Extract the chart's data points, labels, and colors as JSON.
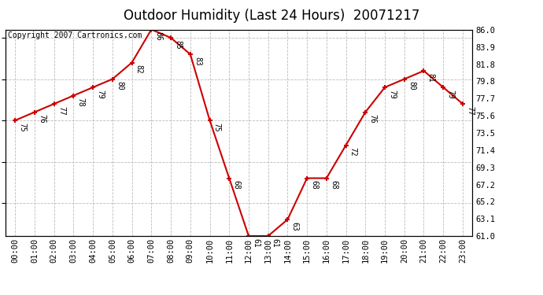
{
  "title": "Outdoor Humidity (Last 24 Hours)  20071217",
  "copyright": "Copyright 2007 Cartronics.com",
  "x_labels": [
    "00:00",
    "01:00",
    "02:00",
    "03:00",
    "04:00",
    "05:00",
    "06:00",
    "07:00",
    "08:00",
    "09:00",
    "10:00",
    "11:00",
    "12:00",
    "13:00",
    "14:00",
    "15:00",
    "16:00",
    "17:00",
    "18:00",
    "19:00",
    "20:00",
    "21:00",
    "22:00",
    "23:00"
  ],
  "x_values": [
    0,
    1,
    2,
    3,
    4,
    5,
    6,
    7,
    8,
    9,
    10,
    11,
    12,
    13,
    14,
    15,
    16,
    17,
    18,
    19,
    20,
    21,
    22,
    23
  ],
  "y_values": [
    75,
    76,
    77,
    78,
    79,
    80,
    82,
    86,
    85,
    83,
    75,
    68,
    61,
    61,
    63,
    68,
    68,
    72,
    76,
    79,
    80,
    81,
    79,
    77
  ],
  "y_labels_right": [
    "86.0",
    "83.9",
    "81.8",
    "79.8",
    "77.7",
    "75.6",
    "73.5",
    "71.4",
    "69.3",
    "67.2",
    "65.2",
    "63.1",
    "61.0"
  ],
  "y_right_ticks": [
    86.0,
    83.9,
    81.8,
    79.8,
    77.7,
    75.6,
    73.5,
    71.4,
    69.3,
    67.2,
    65.2,
    63.1,
    61.0
  ],
  "y_min": 61.0,
  "y_max": 86.0,
  "line_color": "#cc0000",
  "marker_color": "#cc0000",
  "bg_color": "#ffffff",
  "grid_color": "#bbbbbb",
  "title_fontsize": 12,
  "copyright_fontsize": 7,
  "label_fontsize": 7,
  "tick_fontsize": 7.5
}
